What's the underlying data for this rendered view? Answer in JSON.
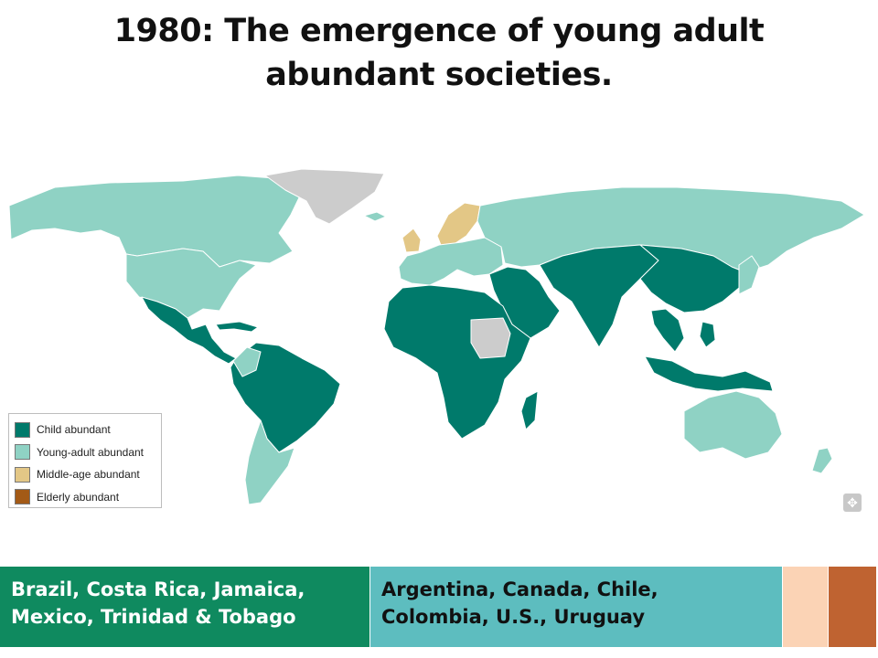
{
  "title": "1980: The emergence of young adult abundant societies.",
  "legend": {
    "items": [
      {
        "label": "Child abundant",
        "color": "#007a6b"
      },
      {
        "label": "Young-adult abundant",
        "color": "#8fd2c4"
      },
      {
        "label": "Middle-age abundant",
        "color": "#e3c786"
      },
      {
        "label": "Elderly abundant",
        "color": "#a35a16"
      }
    ]
  },
  "map_colors": {
    "no_data": "#cccccc",
    "border": "#ffffff"
  },
  "bottom_boxes": {
    "child": {
      "text": "Brazil, Costa Rica, Jamaica, Mexico, Trinidad & Tobago",
      "color": "#0f8a5f"
    },
    "young": {
      "text": "Argentina, Canada, Chile, Colombia, U.S., Uruguay",
      "color": "#5dbdbf"
    },
    "middle": {
      "text": "",
      "color": "#fbd3b5"
    },
    "elderly": {
      "text": "",
      "color": "#bf6331"
    }
  },
  "icons": {
    "zoom": "move-icon"
  }
}
